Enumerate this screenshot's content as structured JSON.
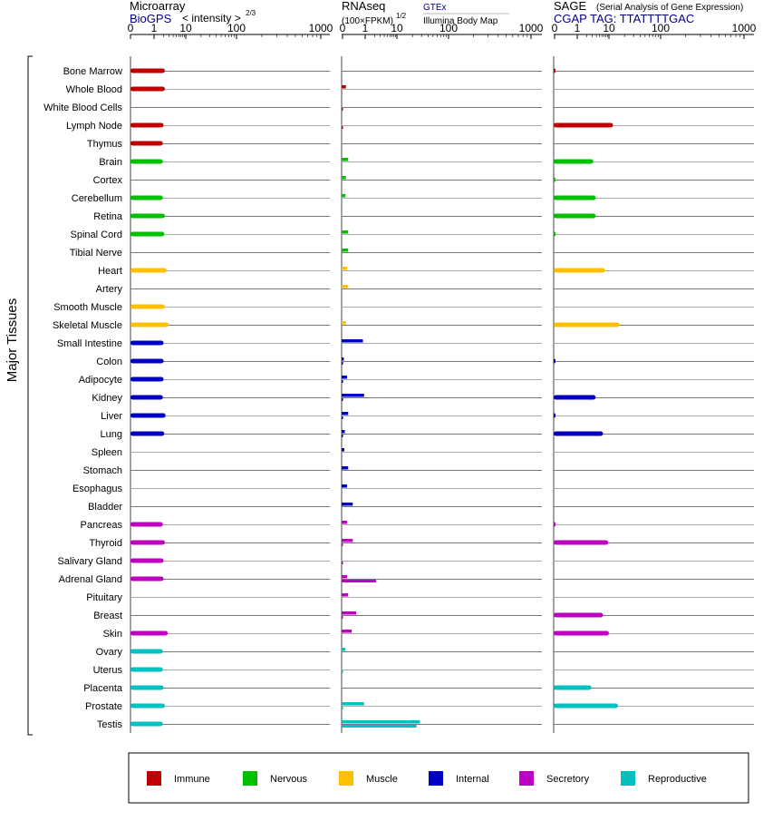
{
  "vertical_label": "Major Tissues",
  "panels": {
    "microarray": {
      "title": "Microarray",
      "source": "BioGPS",
      "scale_label": "< intensity >",
      "scale_power": "2/3",
      "ticks": [
        "0",
        "1",
        "10",
        "100",
        "1000"
      ]
    },
    "rnaseq": {
      "title": "RNAseq",
      "unit_label": "(100×FPKM)",
      "unit_power": "1/2",
      "source_top": "GTEx",
      "source_bottom": "Illumina Body Map",
      "ticks": [
        "0",
        "1",
        "10",
        "100",
        "1000"
      ]
    },
    "sage": {
      "title": "SAGE",
      "subtitle": "(Serial Analysis of Gene Expression)",
      "tag_label": "CGAP TAG: TTATTTTGAC",
      "ticks": [
        "0",
        "1",
        "10",
        "100",
        "1000"
      ]
    }
  },
  "colors": {
    "Immune": "#c00000",
    "Nervous": "#00c000",
    "Muscle": "#ffc000",
    "Internal": "#0000c0",
    "Secretory": "#c000c0",
    "Reproductive": "#00c0c0",
    "accent_text": "#000080"
  },
  "legend": [
    "Immune",
    "Nervous",
    "Muscle",
    "Internal",
    "Secretory",
    "Reproductive"
  ],
  "chart_data": {
    "type": "bar",
    "orientation": "horizontal",
    "x_scale": "log-like (0, 1, 10, 100, 1000)",
    "grid": true,
    "categories": [
      "Bone Marrow",
      "Whole Blood",
      "White Blood Cells",
      "Lymph Node",
      "Thymus",
      "Brain",
      "Cortex",
      "Cerebellum",
      "Retina",
      "Spinal Cord",
      "Tibial Nerve",
      "Heart",
      "Artery",
      "Smooth Muscle",
      "Skeletal Muscle",
      "Small Intestine",
      "Colon",
      "Adipocyte",
      "Kidney",
      "Liver",
      "Lung",
      "Spleen",
      "Stomach",
      "Esophagus",
      "Bladder",
      "Pancreas",
      "Thyroid",
      "Salivary Gland",
      "Adrenal Gland",
      "Pituitary",
      "Breast",
      "Skin",
      "Ovary",
      "Uterus",
      "Placenta",
      "Prostate",
      "Testis"
    ],
    "groups": [
      "Immune",
      "Immune",
      "Immune",
      "Immune",
      "Immune",
      "Nervous",
      "Nervous",
      "Nervous",
      "Nervous",
      "Nervous",
      "Nervous",
      "Muscle",
      "Muscle",
      "Muscle",
      "Muscle",
      "Internal",
      "Internal",
      "Internal",
      "Internal",
      "Internal",
      "Internal",
      "Internal",
      "Internal",
      "Internal",
      "Internal",
      "Secretory",
      "Secretory",
      "Secretory",
      "Secretory",
      "Secretory",
      "Secretory",
      "Secretory",
      "Reproductive",
      "Reproductive",
      "Reproductive",
      "Reproductive",
      "Reproductive"
    ],
    "series": [
      {
        "name": "Microarray",
        "values": [
          2.2,
          2.2,
          null,
          2.0,
          1.9,
          1.9,
          null,
          1.9,
          2.2,
          2.1,
          null,
          2.5,
          null,
          2.2,
          2.9,
          2.0,
          2.0,
          2.0,
          1.9,
          2.3,
          2.1,
          null,
          null,
          null,
          null,
          1.9,
          2.2,
          2.0,
          2.0,
          null,
          null,
          2.7,
          1.9,
          1.9,
          2.0,
          2.2,
          1.9
        ]
      },
      {
        "name": "GTEx",
        "values": [
          null,
          0.15,
          null,
          null,
          null,
          0.25,
          0.15,
          0.13,
          null,
          0.25,
          0.25,
          0.2,
          0.25,
          null,
          0.15,
          0.9,
          0.06,
          0.2,
          0.95,
          0.25,
          0.1,
          0.08,
          0.25,
          0.2,
          0.45,
          0.2,
          0.45,
          null,
          0.2,
          0.25,
          0.6,
          0.4,
          0.12,
          null,
          null,
          0.95,
          28
        ]
      },
      {
        "name": "Illumina Body Map",
        "values": [
          null,
          null,
          0.02,
          0.02,
          null,
          null,
          null,
          null,
          null,
          null,
          null,
          null,
          null,
          null,
          null,
          null,
          0.02,
          0.02,
          0.02,
          0.02,
          0.02,
          null,
          null,
          null,
          null,
          null,
          0.02,
          0.02,
          2.2,
          null,
          0.02,
          null,
          null,
          0.02,
          null,
          0.02,
          24
        ]
      },
      {
        "name": "SAGE",
        "values": [
          0.02,
          null,
          null,
          12,
          null,
          3.2,
          0.02,
          3.8,
          3.8,
          0.02,
          null,
          7.5,
          null,
          null,
          16,
          null,
          0.02,
          null,
          3.8,
          0.02,
          6.5,
          null,
          null,
          null,
          null,
          0.02,
          9.5,
          null,
          null,
          null,
          6.5,
          10,
          null,
          null,
          2.8,
          15,
          null
        ]
      }
    ]
  }
}
